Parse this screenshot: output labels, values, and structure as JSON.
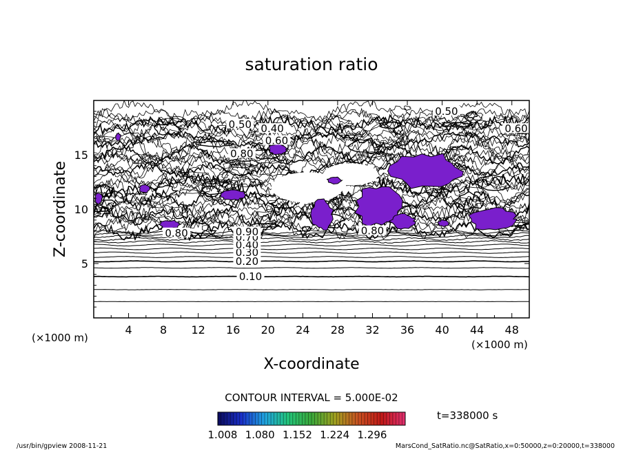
{
  "chart_data": {
    "type": "contour",
    "title": "saturation ratio",
    "xlabel": "X-coordinate",
    "ylabel": "Z-coordinate",
    "x_unit": "(×1000 m)",
    "y_unit": "(×1000 m)",
    "xlim": [
      0,
      50
    ],
    "ylim": [
      0,
      20
    ],
    "x_ticks": [
      4,
      8,
      12,
      16,
      20,
      24,
      28,
      32,
      36,
      40,
      44,
      48
    ],
    "y_ticks": [
      5,
      10,
      15
    ],
    "contour_interval_text": "CONTOUR INTERVAL = 5.000E-02",
    "time_text": "t=338000 s",
    "colorbar": {
      "ticks": [
        "1.008",
        "1.080",
        "1.152",
        "1.224",
        "1.296"
      ],
      "range": [
        1.008,
        1.296
      ],
      "colors": [
        "#0a0a5a",
        "#1a2fc8",
        "#1fa3e0",
        "#23c47a",
        "#3aa83a",
        "#a0a020",
        "#c85020",
        "#c01818",
        "#e03070"
      ]
    },
    "contour_labels": [
      {
        "label": "0.10",
        "x": 18,
        "z": 3.8
      },
      {
        "label": "0.20",
        "x": 17.6,
        "z": 5.2
      },
      {
        "label": "0.30",
        "x": 17.6,
        "z": 6.0
      },
      {
        "label": "0.40",
        "x": 17.6,
        "z": 6.7
      },
      {
        "label": "0.70",
        "x": 17.6,
        "z": 7.4
      },
      {
        "label": "0.90",
        "x": 17.6,
        "z": 7.9
      },
      {
        "label": "0.50",
        "x": 40.5,
        "z": 19.0
      },
      {
        "label": "0.60",
        "x": 48.5,
        "z": 17.4
      },
      {
        "label": "0.50",
        "x": 16.8,
        "z": 17.8
      },
      {
        "label": "0.40",
        "x": 20.5,
        "z": 17.4
      },
      {
        "label": "0.60",
        "x": 21.0,
        "z": 16.3
      },
      {
        "label": "0.80",
        "x": 17.0,
        "z": 15.1
      },
      {
        "label": "0.80",
        "x": 9.5,
        "z": 7.8
      },
      {
        "label": "0.80",
        "x": 32.0,
        "z": 8.0
      }
    ],
    "supersaturated_regions": [
      {
        "x": [
          2.5,
          3.1
        ],
        "z": [
          16.3,
          17.0
        ]
      },
      {
        "x": [
          20.0,
          22.3
        ],
        "z": [
          15.0,
          16.0
        ]
      },
      {
        "x": [
          34.0,
          42.5
        ],
        "z": [
          11.8,
          15.2
        ]
      },
      {
        "x": [
          30.0,
          35.5
        ],
        "z": [
          8.3,
          12.2
        ]
      },
      {
        "x": [
          25.0,
          27.5
        ],
        "z": [
          8.0,
          11.0
        ]
      },
      {
        "x": [
          34.0,
          37.0
        ],
        "z": [
          8.2,
          9.6
        ]
      },
      {
        "x": [
          43.0,
          48.5
        ],
        "z": [
          8.0,
          10.2
        ]
      },
      {
        "x": [
          7.5,
          10.0
        ],
        "z": [
          8.2,
          9.0
        ]
      },
      {
        "x": [
          14.5,
          17.5
        ],
        "z": [
          10.8,
          11.8
        ]
      },
      {
        "x": [
          0.1,
          1.0
        ],
        "z": [
          10.5,
          11.5
        ]
      },
      {
        "x": [
          5.2,
          6.5
        ],
        "z": [
          11.5,
          12.3
        ]
      },
      {
        "x": [
          26.8,
          28.5
        ],
        "z": [
          12.3,
          13.0
        ]
      },
      {
        "x": [
          39.5,
          40.8
        ],
        "z": [
          8.4,
          9.0
        ]
      }
    ]
  },
  "footer": {
    "left": "/usr/bin/gpview   2008-11-21",
    "right": "MarsCond_SatRatio.nc@SatRatio,x=0:50000,z=0:20000,t=338000"
  }
}
